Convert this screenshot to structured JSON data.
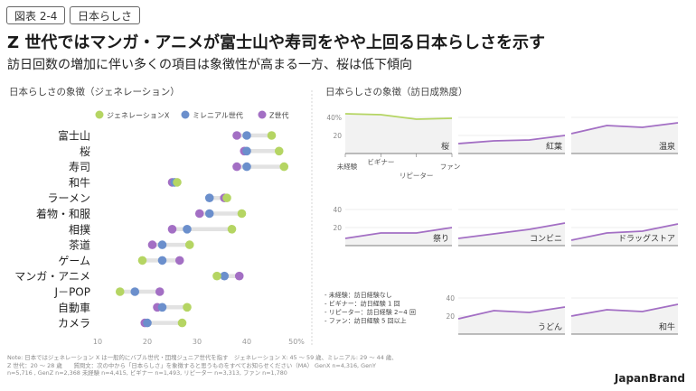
{
  "header": {
    "figure_label": "図表 2-4",
    "topic_label": "日本らしさ",
    "headline": "Z 世代ではマンガ・アニメが富士山や寿司をやや上回る日本らしさを示す",
    "subheadline": "訪日回数の増加に伴い多くの項目は象徴性が高まる一方、桜は低下傾向"
  },
  "footer": {
    "note_lines": [
      "Note: 日本ではジェネレーション X は一般的にバブル世代・団塊ジュニア世代を指す　ジェネレーション X: 45 ～ 59 歳、ミレニアル: 29 ～ 44 歳、",
      "Z 世代：20 ～ 28 歳　　質問文：次の中から「日本らしさ」を象徴すると思うものをすべてお知らせください（MA）  GenX n=4,316, GenY",
      "n=5,716 , GenZ n=2,368  未経験 n=4,415, ビギナー n=1,493, リピーター n=3,313, ファン n=1,780"
    ],
    "brand": "JapanBrand"
  },
  "chart_data": [
    {
      "type": "dot",
      "title": "日本らしさの象徴（ジェネレーション）",
      "xlim": [
        10,
        50
      ],
      "x_ticks": [
        10,
        20,
        30,
        40,
        50
      ],
      "x_tick_labels": [
        "10",
        "20",
        "30",
        "40",
        "50%"
      ],
      "grid": false,
      "legend_position": "top",
      "colors": {
        "genx": "#b5d563",
        "millennial": "#6b8fcc",
        "genz": "#a36fc4",
        "connector": "#e2e2e2",
        "axis": "#aaaaaa"
      },
      "categories": [
        "富士山",
        "桜",
        "寿司",
        "和牛",
        "ラーメン",
        "着物・和服",
        "相撲",
        "茶道",
        "ゲーム",
        "マンガ・アニメ",
        "J－POP",
        "自動車",
        "カメラ"
      ],
      "series": [
        {
          "name": "ジェネレーションX",
          "values": [
            45,
            46.5,
            47.5,
            26,
            36,
            39,
            37,
            28.5,
            19,
            34,
            14.5,
            28,
            27
          ]
        },
        {
          "name": "ミレニアル世代",
          "values": [
            40,
            40,
            40,
            25.5,
            32.5,
            32.5,
            28,
            23,
            23,
            35.5,
            17.5,
            23,
            20
          ]
        },
        {
          "name": "Z世代",
          "values": [
            38,
            39.5,
            38,
            25,
            35.5,
            30.5,
            25,
            21,
            26.5,
            38.5,
            22.5,
            22,
            19.5
          ]
        }
      ]
    },
    {
      "type": "line",
      "title": "日本らしさの象徴（訪日成熟度）",
      "x": [
        "未経験",
        "ビギナー",
        "リピーター",
        "ファン"
      ],
      "ylim": [
        0,
        50
      ],
      "y_ticks": [
        20,
        40
      ],
      "y_tick_labels": [
        "20",
        "40"
      ],
      "first_panel_y_tick_labels": [
        "20",
        "40%"
      ],
      "legend_lines": [
        "- 未経験：訪日経験なし",
        "- ビギナー：訪日経験 1 回",
        "- リピーター：訪日経験 2~4 回",
        "- ファン：訪日経験 5 回以上"
      ],
      "colors": {
        "sakura_line": "#b5d563",
        "line": "#a36fc4",
        "fill": "#f2f2f2",
        "grid": "#dddddd"
      },
      "panels": [
        {
          "name": "桜",
          "values": [
            44,
            43,
            38,
            39
          ]
        },
        {
          "name": "紅葉",
          "values": [
            11,
            14,
            15,
            20
          ]
        },
        {
          "name": "温泉",
          "values": [
            22,
            31,
            29,
            34
          ]
        },
        {
          "name": "祭り",
          "values": [
            8,
            14,
            14,
            20
          ]
        },
        {
          "name": "コンビニ",
          "values": [
            8,
            13,
            18,
            25
          ]
        },
        {
          "name": "ドラッグストア",
          "values": [
            6,
            14,
            16,
            24
          ]
        },
        {
          "name": "うどん",
          "values": [
            17,
            26,
            24,
            30
          ]
        },
        {
          "name": "和牛",
          "values": [
            20,
            27,
            25,
            33
          ]
        }
      ]
    }
  ]
}
